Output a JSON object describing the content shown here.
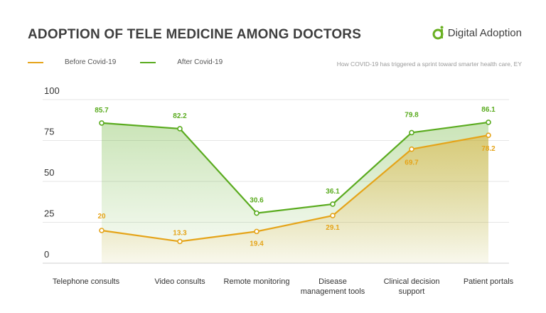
{
  "header": {
    "title": "ADOPTION OF TELE MEDICINE AMONG DOCTORS",
    "brand": "Digital Adoption",
    "brand_glyph": "a",
    "source": "How COVID-19 has triggered a sprint toward smarter health care, EY"
  },
  "colors": {
    "before": "#e5a419",
    "after": "#5aab1f",
    "grid": "#e6e6e6",
    "brand": "#6ab023"
  },
  "chart_data": {
    "type": "line",
    "categories": [
      [
        "Telephone consults"
      ],
      [
        "Video consults"
      ],
      [
        "Remote monitoring"
      ],
      [
        "Disease",
        "management tools"
      ],
      [
        "Clinical decision",
        "support"
      ],
      [
        "Patient portals"
      ]
    ],
    "series": [
      {
        "name": "Before Covid-19",
        "values": [
          20,
          13.3,
          19.4,
          29.1,
          69.7,
          78.2
        ]
      },
      {
        "name": "After Covid-19",
        "values": [
          85.7,
          82.2,
          30.6,
          36.1,
          79.8,
          86.1
        ]
      }
    ],
    "data_labels": {
      "before": [
        "20",
        "13.3",
        "19.4",
        "29.1",
        "69.7",
        "78.2"
      ],
      "after": [
        "85.7",
        "82.2",
        "30.6",
        "36.1",
        "79.8",
        "86.1"
      ]
    },
    "yticks": [
      "100",
      "75",
      "50",
      "25",
      "0"
    ],
    "ylim": [
      0,
      100
    ],
    "grid": true,
    "legend": "top-left"
  }
}
